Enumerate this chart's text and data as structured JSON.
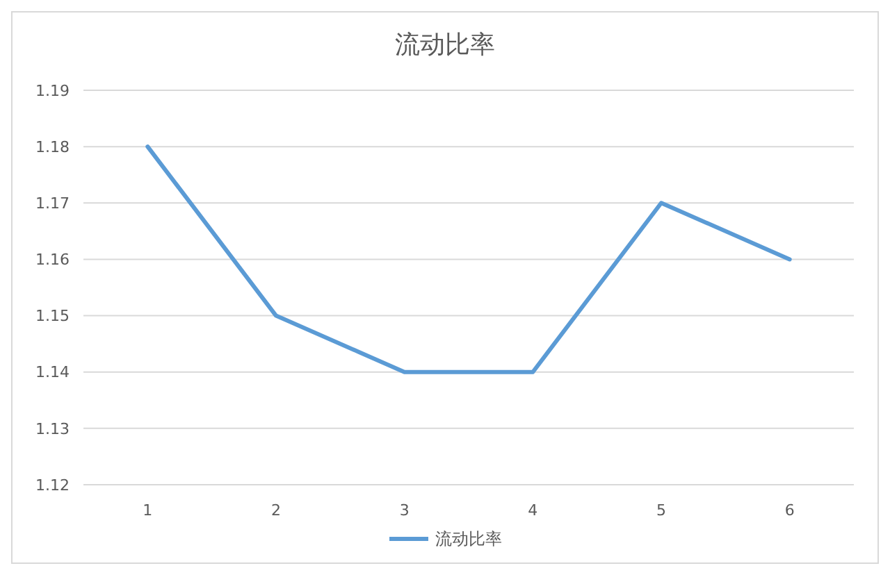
{
  "chart_data": {
    "type": "line",
    "title": "流动比率",
    "categories": [
      "1",
      "2",
      "3",
      "4",
      "5",
      "6"
    ],
    "series": [
      {
        "name": "流动比率",
        "color": "#5b9bd5",
        "values": [
          1.18,
          1.15,
          1.14,
          1.14,
          1.17,
          1.16
        ]
      }
    ],
    "ylim": [
      1.12,
      1.19
    ],
    "yticks": [
      1.12,
      1.13,
      1.14,
      1.15,
      1.16,
      1.17,
      1.18,
      1.19
    ],
    "grid": "y",
    "legend": "bottom",
    "marker": "none",
    "line_style": "solid"
  }
}
